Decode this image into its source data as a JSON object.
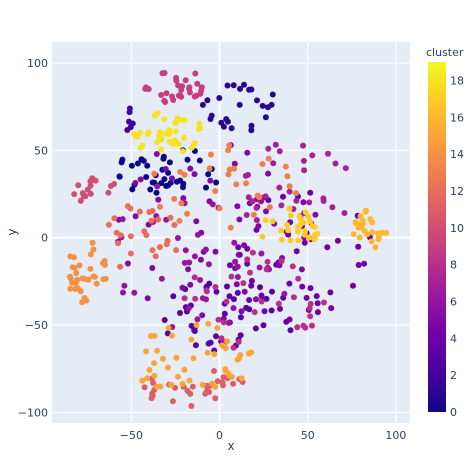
{
  "chart_data": {
    "type": "scatter",
    "xlabel": "x",
    "ylabel": "y",
    "xlim": [
      -95,
      108
    ],
    "ylim": [
      -106,
      112
    ],
    "xticks": [
      -50,
      0,
      50,
      100
    ],
    "yticks": [
      -100,
      -50,
      0,
      50,
      100
    ],
    "grid": true,
    "colorbar": {
      "title": "cluster",
      "min": 0,
      "max": 19,
      "ticks": [
        0,
        2,
        4,
        6,
        8,
        10,
        12,
        14,
        16,
        18
      ],
      "colorscale": [
        "#0d0887",
        "#46039f",
        "#7201a8",
        "#9c179e",
        "#bd3786",
        "#d8576b",
        "#ed7953",
        "#fb9f3a",
        "#fdca26",
        "#f0f921"
      ]
    },
    "clusters": [
      {
        "cluster": 0,
        "cx": -28,
        "cy": 38,
        "rx": 32,
        "ry": 14,
        "n": 40
      },
      {
        "cluster": 1,
        "cx": 12,
        "cy": 75,
        "rx": 22,
        "ry": 14,
        "n": 25
      },
      {
        "cluster": 2,
        "cx": -48,
        "cy": 68,
        "rx": 8,
        "ry": 8,
        "n": 6
      },
      {
        "cluster": 3,
        "cx": 5,
        "cy": -45,
        "rx": 40,
        "ry": 20,
        "n": 45
      },
      {
        "cluster": 4,
        "cx": 45,
        "cy": -10,
        "rx": 42,
        "ry": 38,
        "n": 45
      },
      {
        "cluster": 5,
        "cx": 0,
        "cy": 5,
        "rx": 60,
        "ry": 55,
        "n": 55
      },
      {
        "cluster": 6,
        "cx": -10,
        "cy": -10,
        "rx": 55,
        "ry": 45,
        "n": 40
      },
      {
        "cluster": 7,
        "cx": 40,
        "cy": 30,
        "rx": 40,
        "ry": 25,
        "n": 30
      },
      {
        "cluster": 8,
        "cx": 20,
        "cy": -35,
        "rx": 40,
        "ry": 30,
        "n": 35
      },
      {
        "cluster": 9,
        "cx": -25,
        "cy": 88,
        "rx": 18,
        "ry": 12,
        "n": 30
      },
      {
        "cluster": 10,
        "cx": -70,
        "cy": 25,
        "rx": 15,
        "ry": 10,
        "n": 15
      },
      {
        "cluster": 11,
        "cx": -15,
        "cy": -85,
        "rx": 30,
        "ry": 12,
        "n": 30
      },
      {
        "cluster": 12,
        "cx": -45,
        "cy": 0,
        "rx": 25,
        "ry": 20,
        "n": 25
      },
      {
        "cluster": 13,
        "cx": 0,
        "cy": 30,
        "rx": 45,
        "ry": 25,
        "n": 30
      },
      {
        "cluster": 14,
        "cx": -75,
        "cy": -20,
        "rx": 12,
        "ry": 18,
        "n": 35
      },
      {
        "cluster": 15,
        "cx": -15,
        "cy": -70,
        "rx": 35,
        "ry": 22,
        "n": 45
      },
      {
        "cluster": 16,
        "cx": 85,
        "cy": 5,
        "rx": 10,
        "ry": 12,
        "n": 25
      },
      {
        "cluster": 17,
        "cx": 40,
        "cy": 5,
        "rx": 18,
        "ry": 12,
        "n": 30
      },
      {
        "cluster": 18,
        "cx": -30,
        "cy": 60,
        "rx": 22,
        "ry": 12,
        "n": 40
      }
    ]
  }
}
